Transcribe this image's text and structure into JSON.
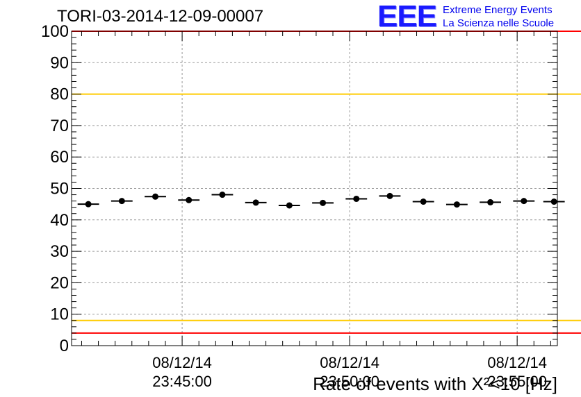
{
  "header": {
    "title": "TORI-03-2014-12-09-00007"
  },
  "logo": {
    "mark": "EEE",
    "line1": "Extreme Energy Events",
    "line2": "La Scienza nelle Scuole",
    "color": "#1a1aff"
  },
  "chart_data": {
    "type": "scatter",
    "title": "TORI-03-2014-12-09-00007",
    "xlabel": "Rate of events with X²<10 [Hz]",
    "ylabel": "",
    "ylim": [
      0,
      100
    ],
    "yticks": [
      0,
      10,
      20,
      30,
      40,
      50,
      60,
      70,
      80,
      90,
      100
    ],
    "x_range_minutes": [
      -3.3,
      11.2
    ],
    "x_ticks": [
      {
        "minute": 0,
        "date": "08/12/14",
        "time": "23:45:00"
      },
      {
        "minute": 5,
        "date": "08/12/14",
        "time": "23:50:00"
      },
      {
        "minute": 10,
        "date": "08/12/14",
        "time": "23:55:00"
      }
    ],
    "grid": true,
    "series": [
      {
        "x_minutes": [
          -2.8,
          -1.8,
          -0.8,
          0.2,
          1.2,
          2.2,
          3.2,
          4.2,
          5.2,
          6.2,
          7.2,
          8.2,
          9.2,
          10.2,
          11.1
        ],
        "values": [
          45.0,
          46.0,
          47.4,
          46.3,
          48.0,
          45.5,
          44.6,
          45.4,
          46.7,
          47.6,
          45.8,
          44.9,
          45.6,
          46.0,
          45.8
        ],
        "bin_halfwidth_minutes": 0.32,
        "color": "#000000"
      }
    ],
    "reference_lines": [
      {
        "value": 100,
        "color": "#ff0000"
      },
      {
        "value": 80,
        "color": "#ffcc00"
      },
      {
        "value": 8,
        "color": "#ffcc00"
      },
      {
        "value": 4,
        "color": "#ff0000"
      }
    ]
  }
}
